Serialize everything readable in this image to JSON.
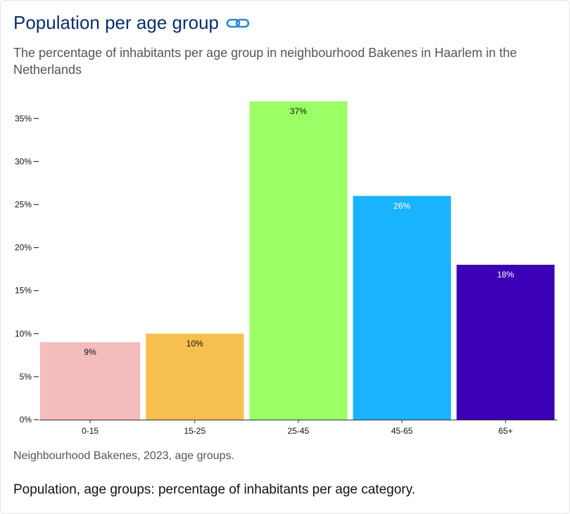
{
  "header": {
    "title": "Population per age group",
    "link_icon": "link-icon",
    "subtitle": "The percentage of inhabitants per age group in neighbourhood Bakenes in Haarlem in the Netherlands"
  },
  "chart_data": {
    "type": "bar",
    "categories": [
      "0-15",
      "15-25",
      "25-45",
      "45-65",
      "65+"
    ],
    "values": [
      9,
      10,
      37,
      26,
      18
    ],
    "data_labels": [
      "9%",
      "10%",
      "37%",
      "26%",
      "18%"
    ],
    "colors": [
      "#f4bcbc",
      "#f7be50",
      "#9bff66",
      "#1ab3ff",
      "#3b00b5"
    ],
    "label_colors": [
      "#111111",
      "#111111",
      "#111111",
      "#ffffff",
      "#ffffff"
    ],
    "y_ticks": [
      0,
      5,
      10,
      15,
      20,
      25,
      30,
      35
    ],
    "y_tick_labels": [
      "0%",
      "5%",
      "10%",
      "15%",
      "20%",
      "25%",
      "30%",
      "35%"
    ],
    "ylim": [
      0,
      37
    ],
    "grid": false,
    "legend": "none"
  },
  "caption": "Neighbourhood Bakenes, 2023, age groups.",
  "footnote": "Population, age groups: percentage of inhabitants per age category."
}
